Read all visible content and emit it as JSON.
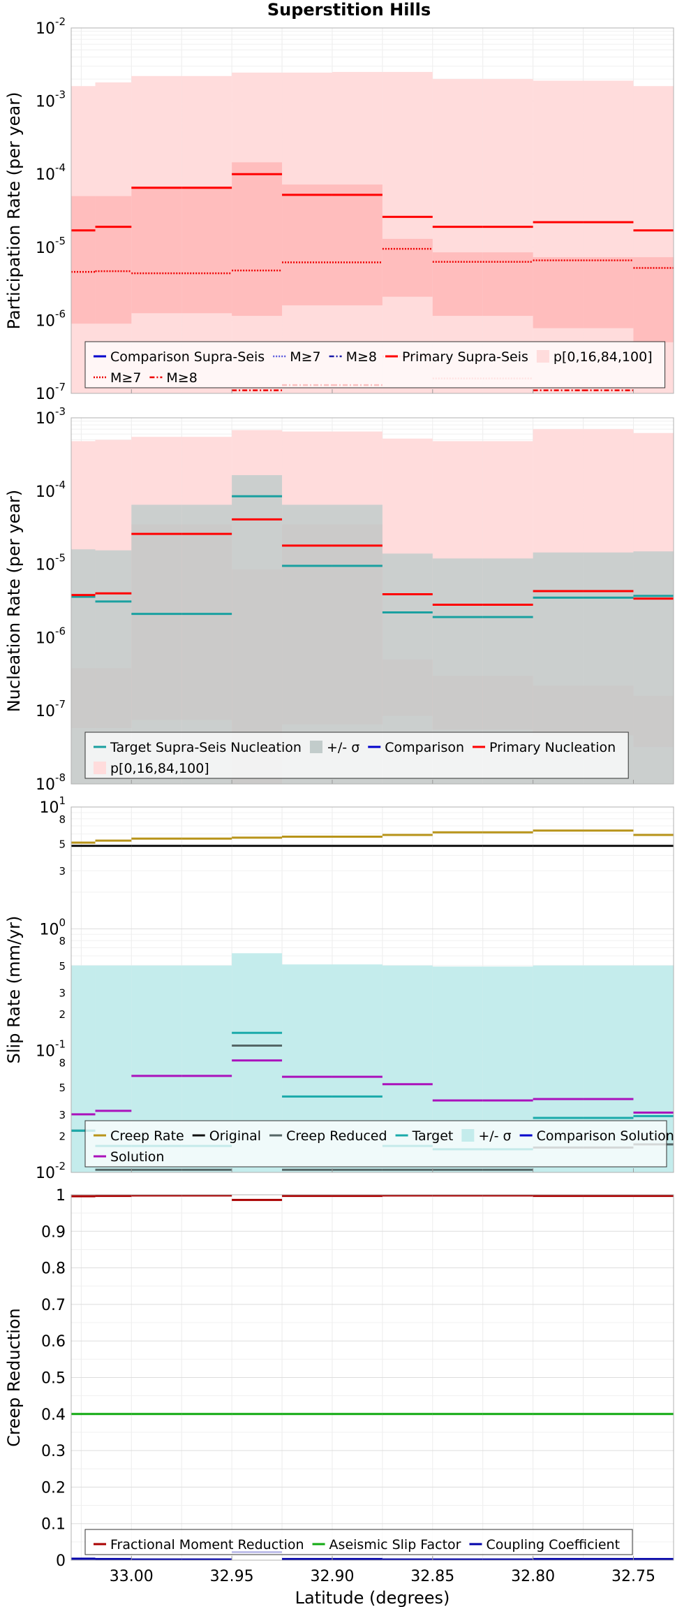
{
  "chart_data": [
    {
      "type": "line",
      "title": "Superstition Hills",
      "ylabel": "Participation Rate (per year)",
      "yscale": "log",
      "ylim": [
        1e-07,
        0.01
      ],
      "xlim": [
        33.03,
        32.73
      ],
      "x_ticks": [
        33.0,
        32.95,
        32.9,
        32.85,
        32.8,
        32.75
      ],
      "y_ticks": [
        {
          "base": "10",
          "exp": "-2"
        },
        {
          "base": "10",
          "exp": "-3"
        },
        {
          "base": "10",
          "exp": "-4"
        },
        {
          "base": "10",
          "exp": "-5"
        },
        {
          "base": "10",
          "exp": "-6"
        },
        {
          "base": "10",
          "exp": "-7"
        }
      ],
      "bin_edges": [
        33.03,
        33.018,
        33.0,
        32.975,
        32.95,
        32.925,
        32.9,
        32.875,
        32.85,
        32.825,
        32.8,
        32.775,
        32.75,
        32.73
      ],
      "bands": [
        {
          "name": "p[0,16,84,100] outer",
          "color": "#ffdcdc",
          "lower": [
            1e-07,
            1e-07,
            1e-07,
            1e-07,
            1e-07,
            1e-07,
            1e-07,
            1e-07,
            1e-07,
            1e-07,
            1e-07,
            1e-07,
            1e-07
          ],
          "upper": [
            0.0016,
            0.0018,
            0.0022,
            0.0022,
            0.00245,
            0.00245,
            0.0025,
            0.0025,
            0.002,
            0.002,
            0.0019,
            0.0019,
            0.0016
          ]
        },
        {
          "name": "p[0,16,84,100] inner",
          "color": "#ffbdbd",
          "lower": [
            9e-07,
            9e-07,
            1.25e-06,
            1.25e-06,
            1.15e-06,
            1.6e-06,
            1.6e-06,
            2.1e-06,
            1.15e-06,
            1.15e-06,
            7.8e-07,
            7.8e-07,
            5e-07
          ],
          "upper": [
            5e-05,
            5e-05,
            6.8e-05,
            6.8e-05,
            0.000145,
            7.2e-05,
            7.2e-05,
            1.3e-05,
            8.5e-06,
            8.5e-06,
            7.3e-06,
            7.3e-06,
            7.3e-06
          ]
        }
      ],
      "series": [
        {
          "name": "Comparison Supra-Seis",
          "color": "#0000cc",
          "style": "solid",
          "values": []
        },
        {
          "name": "M≥7",
          "color": "#5555dd",
          "style": "dotted",
          "values": []
        },
        {
          "name": "M≥8",
          "color": "#1a1aa8",
          "style": "dashdot",
          "values": []
        },
        {
          "name": "Primary Supra-Seis",
          "color": "#ff0000",
          "style": "solid",
          "values": [
            1.7e-05,
            1.9e-05,
            6.5e-05,
            6.5e-05,
            0.0001,
            5.2e-05,
            5.2e-05,
            2.6e-05,
            1.9e-05,
            1.9e-05,
            2.2e-05,
            2.2e-05,
            1.7e-05
          ]
        },
        {
          "name": "M≥7",
          "color": "#ee0000",
          "style": "dotted",
          "values": [
            4.6e-06,
            4.7e-06,
            4.4e-06,
            4.4e-06,
            4.8e-06,
            6.2e-06,
            6.2e-06,
            9.5e-06,
            6.3e-06,
            6.3e-06,
            6.6e-06,
            6.6e-06,
            5.2e-06
          ]
        },
        {
          "name": "M≥8",
          "color": "#ee0000",
          "style": "dashdot",
          "values": [
            null,
            null,
            null,
            null,
            1.1e-07,
            1.3e-07,
            1.3e-07,
            null,
            null,
            null,
            1.1e-07,
            1.1e-07,
            null
          ]
        },
        {
          "name": "p[0,16,84,100] median",
          "color": "#ff8c8c",
          "style": "dotted",
          "values": [
            null,
            null,
            null,
            null,
            null,
            null,
            null,
            3.2e-07,
            1.6e-07,
            1.6e-07,
            null,
            null,
            null
          ]
        }
      ],
      "legend": {
        "placement": "bottom",
        "rows": [
          [
            {
              "label": "Comparison Supra-Seis",
              "color": "#0000cc",
              "style": "solid"
            },
            {
              "label": "M≥7",
              "color": "#5555dd",
              "style": "dotted"
            },
            {
              "label": "M≥8",
              "color": "#1a1aa8",
              "style": "dashdot"
            },
            {
              "label": "Primary Supra-Seis",
              "color": "#ff0000",
              "style": "solid"
            },
            {
              "label": "p[0,16,84,100]",
              "color": "#ffdcdc",
              "style": "patch"
            }
          ],
          [
            {
              "label": "M≥7",
              "color": "#ee0000",
              "style": "dotted"
            },
            {
              "label": "M≥8",
              "color": "#ee0000",
              "style": "dashdot"
            }
          ]
        ]
      },
      "grid": true
    },
    {
      "type": "line",
      "ylabel": "Nucleation Rate (per year)",
      "yscale": "log",
      "ylim": [
        1e-08,
        0.001
      ],
      "xlim": [
        33.03,
        32.73
      ],
      "y_ticks": [
        {
          "base": "10",
          "exp": "-3"
        },
        {
          "base": "10",
          "exp": "-4"
        },
        {
          "base": "10",
          "exp": "-5"
        },
        {
          "base": "10",
          "exp": "-6"
        },
        {
          "base": "10",
          "exp": "-7"
        },
        {
          "base": "10",
          "exp": "-8"
        }
      ],
      "bin_edges": [
        33.03,
        33.018,
        33.0,
        32.975,
        32.95,
        32.925,
        32.9,
        32.875,
        32.85,
        32.825,
        32.8,
        32.775,
        32.75,
        32.73
      ],
      "bands": [
        {
          "name": "p[0,16,84,100] outer",
          "color": "#ffdcdc",
          "lower": [
            1e-08,
            1e-08,
            1e-08,
            1e-08,
            1e-08,
            1e-08,
            1e-08,
            1e-08,
            1e-08,
            1e-08,
            1e-08,
            1e-08,
            1e-08
          ],
          "upper": [
            0.00048,
            0.0005,
            0.00055,
            0.00055,
            0.00068,
            0.00065,
            0.00065,
            0.00052,
            0.00048,
            0.00048,
            0.0007,
            0.0007,
            0.00062
          ]
        },
        {
          "name": "p[0,16,84,100] inner",
          "color": "#ffbdbd",
          "lower": [
            5.8e-08,
            5.8e-08,
            7.5e-08,
            7.5e-08,
            1e-08,
            6.5e-08,
            6.5e-08,
            8.5e-08,
            5.5e-08,
            5.5e-08,
            4.6e-08,
            4.6e-08,
            3.2e-08
          ],
          "upper": [
            3.8e-07,
            3.8e-07,
            3.5e-05,
            3.5e-05,
            8.5e-06,
            3.5e-05,
            3.5e-05,
            5e-07,
            3e-07,
            3e-07,
            2.2e-07,
            2.2e-07,
            1.6e-07
          ]
        },
        {
          "name": "+/- σ",
          "color": "#c2cccb",
          "opacity": 0.85,
          "lower": [
            1e-08,
            1e-08,
            1e-08,
            1e-08,
            1e-08,
            1e-08,
            1e-08,
            1e-08,
            1e-08,
            1e-08,
            1e-08,
            1e-08,
            1e-08
          ],
          "upper": [
            1.6e-05,
            1.55e-05,
            6.5e-05,
            6.5e-05,
            0.000165,
            6.5e-05,
            6.5e-05,
            1.4e-05,
            1.2e-05,
            1.2e-05,
            1.45e-05,
            1.45e-05,
            1.5e-05
          ]
        }
      ],
      "series": [
        {
          "name": "Target Supra-Seis Nucleation",
          "color": "#1aa0a0",
          "style": "solid",
          "values": [
            3.6e-06,
            3.1e-06,
            2.1e-06,
            2.1e-06,
            8.5e-05,
            9.5e-06,
            9.5e-06,
            2.2e-06,
            1.9e-06,
            1.9e-06,
            3.5e-06,
            3.5e-06,
            3.7e-06
          ]
        },
        {
          "name": "Comparison",
          "color": "#0000cc",
          "style": "solid",
          "values": []
        },
        {
          "name": "Primary Nucleation",
          "color": "#ff0000",
          "style": "solid",
          "values": [
            3.8e-06,
            4e-06,
            2.6e-05,
            2.6e-05,
            4.1e-05,
            1.8e-05,
            1.8e-05,
            3.9e-06,
            2.8e-06,
            2.8e-06,
            4.3e-06,
            4.3e-06,
            3.4e-06
          ]
        }
      ],
      "legend": {
        "placement": "bottom",
        "rows": [
          [
            {
              "label": "Target Supra-Seis Nucleation",
              "color": "#1aa0a0",
              "style": "solid"
            },
            {
              "label": "+/- σ",
              "color": "#c2cccb",
              "style": "patch"
            },
            {
              "label": "Comparison",
              "color": "#0000cc",
              "style": "solid"
            },
            {
              "label": "Primary Nucleation",
              "color": "#ff0000",
              "style": "solid"
            }
          ],
          [
            {
              "label": "p[0,16,84,100]",
              "color": "#ffdcdc",
              "style": "patch"
            }
          ]
        ]
      },
      "grid": true
    },
    {
      "type": "line",
      "ylabel": "Slip Rate (mm/yr)",
      "yscale": "log",
      "ylim": [
        0.01,
        10
      ],
      "xlim": [
        33.03,
        32.73
      ],
      "y_ticks": [
        {
          "base": "10",
          "exp": "1"
        },
        {
          "base": "10",
          "exp": "0"
        },
        {
          "base": "10",
          "exp": "-1"
        },
        {
          "base": "10",
          "exp": "-2"
        }
      ],
      "y_minor_labels": [
        {
          "value": 8,
          "label": "8"
        },
        {
          "value": 5,
          "label": "5"
        },
        {
          "value": 3,
          "label": "3"
        },
        {
          "value": 0.8,
          "label": "8"
        },
        {
          "value": 0.5,
          "label": "5"
        },
        {
          "value": 0.3,
          "label": "3"
        },
        {
          "value": 0.2,
          "label": "2"
        },
        {
          "value": 0.08,
          "label": "8"
        },
        {
          "value": 0.05,
          "label": "5"
        },
        {
          "value": 0.03,
          "label": "3"
        },
        {
          "value": 0.02,
          "label": "2"
        }
      ],
      "bin_edges": [
        33.03,
        33.018,
        33.0,
        32.975,
        32.95,
        32.925,
        32.9,
        32.875,
        32.85,
        32.825,
        32.8,
        32.775,
        32.75,
        32.73
      ],
      "bands": [
        {
          "name": "+/- σ",
          "color": "#c4ecec",
          "lower": [
            0.01,
            0.01,
            0.01,
            0.01,
            0.01,
            0.01,
            0.01,
            0.01,
            0.01,
            0.01,
            0.01,
            0.01,
            0.01
          ],
          "upper": [
            0.5,
            0.5,
            0.5,
            0.5,
            0.63,
            0.51,
            0.51,
            0.5,
            0.49,
            0.49,
            0.5,
            0.5,
            0.5
          ]
        }
      ],
      "series": [
        {
          "name": "Creep Rate",
          "color": "#b8941a",
          "style": "solid",
          "values": [
            5.1,
            5.3,
            5.5,
            5.5,
            5.6,
            5.7,
            5.7,
            5.9,
            6.2,
            6.2,
            6.4,
            6.4,
            5.9
          ]
        },
        {
          "name": "Original",
          "color": "#111111",
          "style": "solid",
          "values": [
            4.8,
            4.8,
            4.8,
            4.8,
            4.8,
            4.8,
            4.8,
            4.8,
            4.8,
            4.8,
            4.8,
            4.8,
            4.8
          ]
        },
        {
          "name": "Creep Reduced",
          "color": "#556666",
          "style": "solid",
          "values": [
            0.022,
            0.0105,
            0.0105,
            0.0105,
            0.11,
            0.0105,
            0.0105,
            0.0105,
            0.0105,
            0.0105,
            0.016,
            0.016,
            0.017
          ]
        },
        {
          "name": "Target",
          "color": "#1aaaaa",
          "style": "solid",
          "values": [
            0.022,
            0.0165,
            0.0165,
            0.0165,
            0.14,
            0.042,
            0.042,
            0.0165,
            0.0155,
            0.0155,
            0.028,
            0.028,
            0.029
          ]
        },
        {
          "name": "Comparison Solution",
          "color": "#0000cc",
          "style": "solid",
          "values": []
        },
        {
          "name": "Solution",
          "color": "#aa11bb",
          "style": "solid",
          "values": [
            0.03,
            0.032,
            0.062,
            0.062,
            0.083,
            0.061,
            0.061,
            0.053,
            0.039,
            0.039,
            0.04,
            0.04,
            0.031
          ]
        }
      ],
      "legend": {
        "placement": "bottom",
        "rows": [
          [
            {
              "label": "Creep Rate",
              "color": "#b8941a",
              "style": "solid"
            },
            {
              "label": "Original",
              "color": "#111111",
              "style": "solid"
            },
            {
              "label": "Creep Reduced",
              "color": "#556666",
              "style": "solid"
            },
            {
              "label": "Target",
              "color": "#1aaaaa",
              "style": "solid"
            },
            {
              "label": "+/- σ",
              "color": "#c4ecec",
              "style": "patch"
            },
            {
              "label": "Comparison Solution",
              "color": "#0000cc",
              "style": "solid"
            }
          ],
          [
            {
              "label": "Solution",
              "color": "#aa11bb",
              "style": "solid"
            }
          ]
        ]
      },
      "grid": true
    },
    {
      "type": "line",
      "ylabel": "Creep Reduction",
      "xlabel": "Latitude (degrees)",
      "yscale": "linear",
      "ylim": [
        0,
        1
      ],
      "xlim": [
        33.03,
        32.73
      ],
      "x_ticks": [
        33.0,
        32.95,
        32.9,
        32.85,
        32.8,
        32.75
      ],
      "y_ticks": [
        "1",
        "0.9",
        "0.8",
        "0.7",
        "0.6",
        "0.5",
        "0.4",
        "0.3",
        "0.2",
        "0.1",
        "0"
      ],
      "bin_edges": [
        33.03,
        33.018,
        33.0,
        32.975,
        32.95,
        32.925,
        32.9,
        32.875,
        32.85,
        32.825,
        32.8,
        32.775,
        32.75,
        32.73
      ],
      "series": [
        {
          "name": "Fractional Moment Reduction",
          "color": "#aa0000",
          "style": "solid",
          "values": [
            0.996,
            0.997,
            0.998,
            0.998,
            0.986,
            0.997,
            0.997,
            0.998,
            0.998,
            0.998,
            0.997,
            0.997,
            0.997
          ]
        },
        {
          "name": "Aseismic Slip Factor",
          "color": "#11aa11",
          "style": "solid",
          "values": [
            0.4,
            0.4,
            0.4,
            0.4,
            0.4,
            0.4,
            0.4,
            0.4,
            0.4,
            0.4,
            0.4,
            0.4,
            0.4
          ]
        },
        {
          "name": "Coupling Coefficient",
          "color": "#0000aa",
          "style": "solid",
          "values": [
            0.004,
            0.003,
            0.002,
            0.002,
            0.022,
            0.003,
            0.003,
            0.002,
            0.002,
            0.002,
            0.003,
            0.003,
            0.003
          ]
        }
      ],
      "legend": {
        "placement": "bottom",
        "rows": [
          [
            {
              "label": "Fractional Moment Reduction",
              "color": "#aa0000",
              "style": "solid"
            },
            {
              "label": "Aseismic Slip Factor",
              "color": "#11aa11",
              "style": "solid"
            },
            {
              "label": "Coupling Coefficient",
              "color": "#0000aa",
              "style": "solid"
            }
          ]
        ]
      },
      "grid": true
    }
  ]
}
